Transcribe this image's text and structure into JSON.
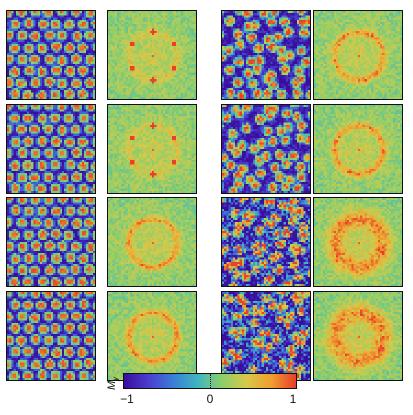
{
  "panels": {
    "left_column": [
      {
        "pattern": "hexagonal-spots",
        "fft": "six-point-ring"
      },
      {
        "pattern": "hexagonal-spots",
        "fft": "six-point-ring"
      },
      {
        "pattern": "hexagonal-spots",
        "fft": "ring"
      },
      {
        "pattern": "hexagonal-spots",
        "fft": "ring"
      }
    ],
    "right_column": [
      {
        "pattern": "disordered-spots",
        "fft": "ring"
      },
      {
        "pattern": "disordered-spots",
        "fft": "ring"
      },
      {
        "pattern": "noisy",
        "fft": "diffuse-ring"
      },
      {
        "pattern": "noisy",
        "fft": "diffuse-ring"
      }
    ]
  },
  "colorbar": {
    "label_main": "M",
    "label_sub": "y",
    "tick_min": "−1",
    "tick_mid": "0",
    "tick_max": "1",
    "colormap": [
      "#3b0f9e",
      "#4c3fd1",
      "#3a7fd8",
      "#3fb7c0",
      "#8fcf6a",
      "#d8c94a",
      "#f0a030",
      "#e8402a"
    ]
  }
}
